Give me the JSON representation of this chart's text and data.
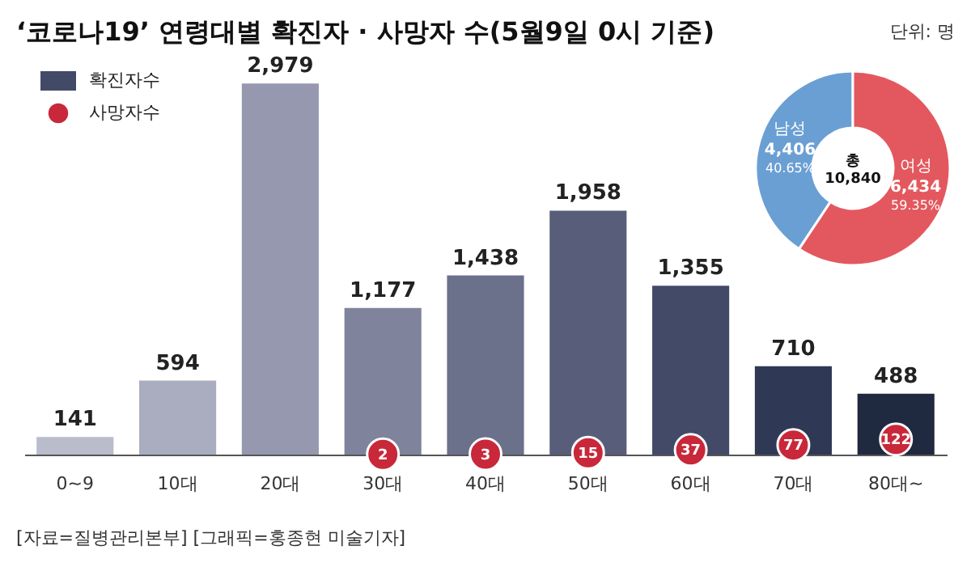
{
  "chart_data": [
    {
      "type": "bar",
      "title": "‘코로나19’ 연령대별 확진자 · 사망자 수(5월9일 0시 기준)",
      "categories": [
        "0~9",
        "10대",
        "20대",
        "30대",
        "40대",
        "50대",
        "60대",
        "70대",
        "80대~"
      ],
      "series": [
        {
          "name": "확진자수",
          "color": "#434a68",
          "colors": [
            "#b8bccb",
            "#a9adbf",
            "#9598ae",
            "#7f839c",
            "#6b708b",
            "#585d7a",
            "#434a68",
            "#2f3854",
            "#1f2940"
          ],
          "values": [
            141,
            594,
            2979,
            1177,
            1438,
            1958,
            1355,
            710,
            488
          ],
          "value_labels": [
            "141",
            "594",
            "2,979",
            "1,177",
            "1,438",
            "1,958",
            "1,355",
            "710",
            "488"
          ]
        },
        {
          "name": "사망자수",
          "type": "scatter",
          "color": "#c8283a",
          "values": [
            null,
            null,
            null,
            2,
            3,
            15,
            37,
            77,
            122
          ],
          "value_labels": [
            null,
            null,
            null,
            "2",
            "3",
            "15",
            "37",
            "77",
            "122"
          ]
        }
      ],
      "tick_labels": "x",
      "legend": "top left",
      "annotations": [
        "단위: 명",
        "[자료=질병관리본부] [그래픽=홍종현 미술기자]"
      ]
    },
    {
      "type": "donut",
      "categories": [
        "남성",
        "여성"
      ],
      "values": [
        4406,
        6434
      ],
      "value_labels": [
        "4,406",
        "6,434"
      ],
      "colors": [
        "#6a9fd4",
        "#e3585e"
      ],
      "annotations": [
        {
          "text": "40.65%",
          "x": "남성"
        },
        {
          "text": "59.35%",
          "x": "여성"
        },
        "총 10,840"
      ]
    }
  ]
}
